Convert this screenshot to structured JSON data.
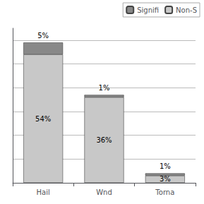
{
  "chart_data": {
    "type": "bar",
    "stacked": true,
    "categories": [
      "Hail",
      "Wnd",
      "Torna"
    ],
    "series": [
      {
        "name": "Non-S",
        "color": "#c8c8c8",
        "values": [
          54,
          36,
          3
        ],
        "value_labels": [
          "54%",
          "36%",
          "3%"
        ]
      },
      {
        "name": "Signifi",
        "color": "#888888",
        "values": [
          5,
          1,
          1
        ],
        "value_labels": [
          "5%",
          "1%",
          "1%"
        ]
      }
    ],
    "ylim": [
      0,
      65
    ],
    "yticks": [
      0,
      10,
      20,
      30,
      40,
      50,
      60
    ],
    "grid": true,
    "legend": "upper right",
    "data_labels": true,
    "tick_labels": "x"
  }
}
